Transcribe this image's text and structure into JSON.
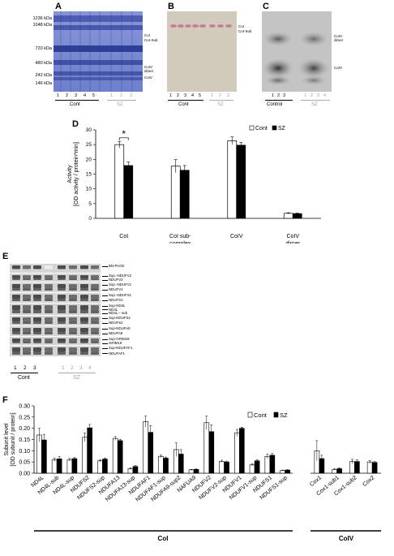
{
  "panels": {
    "A": {
      "label": "A",
      "mw_markers": [
        "1236 kDa",
        "1048 kDa",
        "720 kDa",
        "480 kDa",
        "242 kDa",
        "146 kDa"
      ],
      "band_labels": [
        "CoI",
        "CoI-Sub",
        "CoIV dimer",
        "CoIV"
      ],
      "lanes_cont": [
        "1",
        "2",
        "3",
        "4",
        "5"
      ],
      "lanes_sz": [
        "1",
        "2",
        "3"
      ],
      "group_cont": "Cont",
      "group_sz": "SZ"
    },
    "B": {
      "label": "B",
      "band_labels": [
        "CoI",
        "CoI-Sub"
      ],
      "lanes_cont": [
        "1",
        "2",
        "3",
        "4",
        "5"
      ],
      "lanes_sz": [
        "1",
        "2",
        "3"
      ],
      "group_cont": "Cont",
      "group_sz": "SZ"
    },
    "C": {
      "label": "C",
      "band_labels": [
        "CoIV dimer",
        "CoIV"
      ],
      "lanes_cont": [
        "1",
        "2",
        "3"
      ],
      "lanes_sz": [
        "1",
        "2",
        "3",
        "4"
      ],
      "group_cont": "Control",
      "group_sz": "SZ"
    },
    "E": {
      "label": "E",
      "row_labels": [
        "BN-PAGE",
        "Sup.-NDUFV2",
        "NDUFV2",
        "Sup.-NDUFV1",
        "NDUFV1",
        "Sup.-NDUFS1",
        "NDUFS1",
        "Sup-ND4L",
        "ND4L",
        "ND4L – sub",
        "Sup-NDUFS2",
        "NDUFS2",
        "Sup-NDUFA9",
        "NDUFA9",
        "Sup-GRIM19",
        "GRIM19",
        "Sup-NDUFAF1",
        "NDUFAF1"
      ],
      "lanes_cont": [
        "1",
        "2",
        "3"
      ],
      "lanes_sz": [
        "1",
        "2",
        "3",
        "4"
      ],
      "group_cont": "Cont",
      "group_sz": "SZ"
    }
  },
  "colors": {
    "cont_bar": "#ffffff",
    "sz_bar": "#000000",
    "gel_blue": "#5e6fc4",
    "gel_pink": "#e0c2c0"
  },
  "chart_data": [
    {
      "panel": "D",
      "type": "bar",
      "ylabel": "Activity\n[OD activity / protein*min]",
      "ylim": [
        0,
        30
      ],
      "yticks": [
        "0",
        "5",
        "10",
        "15",
        "20",
        "25",
        "30"
      ],
      "categories": [
        "CoI",
        "CoI sub-\ncomplex",
        "CoIV",
        "CoIV\ndimer"
      ],
      "series": [
        {
          "name": "Cont",
          "values": [
            25.0,
            17.7,
            26.3,
            1.7
          ],
          "errors": [
            1.1,
            2.2,
            1.3,
            0.2
          ]
        },
        {
          "name": "SZ",
          "values": [
            17.9,
            16.3,
            24.8,
            1.6
          ],
          "errors": [
            1.2,
            1.6,
            0.9,
            0.2
          ]
        }
      ],
      "annotation": "*",
      "legend": "top-right"
    },
    {
      "panel": "F",
      "type": "bar",
      "ylabel": "Subunit level\n[OD subunit / protein]",
      "ylim": [
        0,
        0.3
      ],
      "yticks": [
        "0.00",
        "0.05",
        "0.10",
        "0.15",
        "0.20",
        "0.25",
        "0.30"
      ],
      "categories": [
        "ND4L",
        "ND4L-sub",
        "ND4L-sup",
        "NDUFS2",
        "NDUFS2-sup",
        "NDUFA13",
        "NDUFA13-sup",
        "NDUFAF1",
        "NDUFAF1-sup",
        "NDUFA9-sup2",
        "NAFUA9",
        "NDUFV2",
        "NDUFV2-sup",
        "NDUFV1",
        "NDUFV1-sup",
        "NDUFS1",
        "NDUFS1-sup",
        "Cox1",
        "Cox1-sub1",
        "Cox1-sub2",
        "Cox2"
      ],
      "series": [
        {
          "name": "Cont",
          "values": [
            0.17,
            0.06,
            0.06,
            0.16,
            0.055,
            0.155,
            0.02,
            0.23,
            0.075,
            0.105,
            0.015,
            0.225,
            0.053,
            0.18,
            0.037,
            0.075,
            0.012,
            0.1,
            0.017,
            0.052,
            0.05
          ],
          "errors": [
            0.03,
            0.008,
            0.006,
            0.02,
            0.005,
            0.008,
            0.004,
            0.025,
            0.006,
            0.03,
            0.002,
            0.03,
            0.005,
            0.015,
            0.005,
            0.01,
            0.002,
            0.045,
            0.004,
            0.01,
            0.007
          ]
        },
        {
          "name": "SZ",
          "values": [
            0.148,
            0.064,
            0.065,
            0.202,
            0.063,
            0.145,
            0.03,
            0.182,
            0.067,
            0.085,
            0.017,
            0.185,
            0.05,
            0.2,
            0.055,
            0.08,
            0.014,
            0.065,
            0.02,
            0.052,
            0.048
          ],
          "errors": [
            0.025,
            0.01,
            0.005,
            0.015,
            0.005,
            0.006,
            0.004,
            0.03,
            0.005,
            0.02,
            0.002,
            0.03,
            0.004,
            0.005,
            0.005,
            0.008,
            0.002,
            0.015,
            0.004,
            0.008,
            0.004
          ]
        }
      ],
      "groups": [
        {
          "name": "CoI",
          "range": [
            0,
            16
          ]
        },
        {
          "name": "CoIV",
          "range": [
            17,
            20
          ]
        }
      ],
      "legend": "top-right"
    }
  ]
}
